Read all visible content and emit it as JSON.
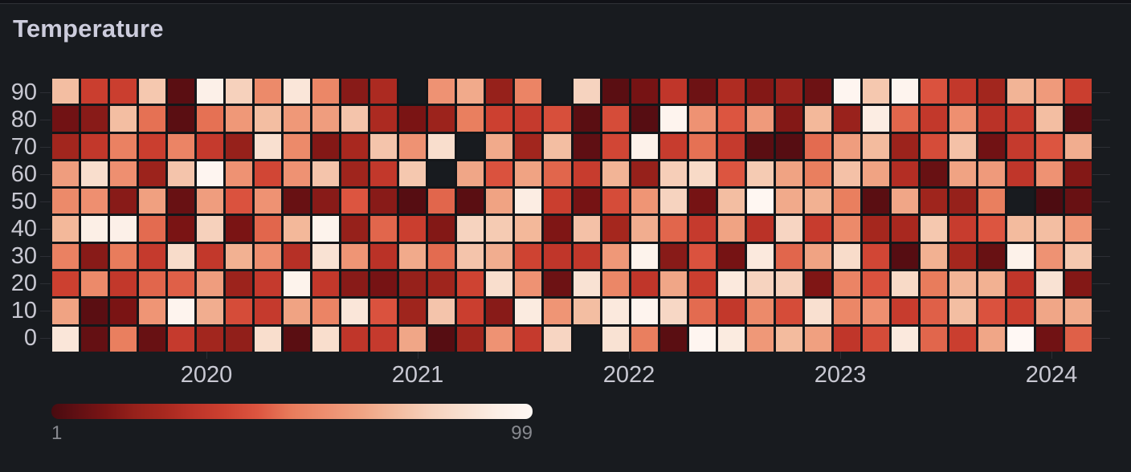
{
  "panel": {
    "title": "Temperature"
  },
  "colors": {
    "panel_bg": "#181b1f",
    "top_border": "#2f3137",
    "title_text": "#ccccdc",
    "axis_text": "#c8c8d2",
    "legend_text": "#87898f",
    "gridline": "#2d2f35",
    "cell_gap": "#141619"
  },
  "chart_data": {
    "type": "heatmap",
    "title": "Temperature",
    "xlabel": "",
    "ylabel": "",
    "x_ticks": [
      "2020",
      "2021",
      "2022",
      "2023",
      "2024"
    ],
    "y_buckets": [
      "90",
      "80",
      "70",
      "60",
      "50",
      "40",
      "30",
      "20",
      "10",
      "0"
    ],
    "value_range": [
      1,
      99
    ],
    "legend": {
      "min_label": "1",
      "max_label": "99"
    },
    "legend_position": "bottom",
    "grid": "faint",
    "color_ramp": [
      {
        "value": 1,
        "color": "#480b10"
      },
      {
        "value": 6,
        "color": "#5f0f13"
      },
      {
        "value": 12,
        "color": "#7a1414"
      },
      {
        "value": 18,
        "color": "#96211b"
      },
      {
        "value": 24,
        "color": "#a8281f"
      },
      {
        "value": 30,
        "color": "#bd3429"
      },
      {
        "value": 36,
        "color": "#cc4030"
      },
      {
        "value": 43,
        "color": "#dc5540"
      },
      {
        "value": 50,
        "color": "#e87c5c"
      },
      {
        "value": 57,
        "color": "#ee8f70"
      },
      {
        "value": 64,
        "color": "#f0a383"
      },
      {
        "value": 71,
        "color": "#f3bb9e"
      },
      {
        "value": 78,
        "color": "#f6d1bc"
      },
      {
        "value": 85,
        "color": "#f9e0d0"
      },
      {
        "value": 92,
        "color": "#fcefe6"
      },
      {
        "value": 99,
        "color": "#fff8f4"
      }
    ],
    "values": [
      [
        72,
        35,
        35,
        75,
        5,
        93,
        78,
        55,
        88,
        54,
        15,
        25,
        null,
        58,
        66,
        18,
        53,
        null,
        79,
        5,
        11,
        31,
        9,
        26,
        14,
        19,
        9,
        97,
        75,
        96,
        42,
        32,
        22,
        69,
        61,
        35
      ],
      [
        10,
        15,
        72,
        48,
        5,
        48,
        60,
        72,
        60,
        62,
        74,
        25,
        12,
        20,
        51,
        36,
        33,
        41,
        5,
        40,
        4,
        96,
        58,
        43,
        61,
        14,
        70,
        19,
        91,
        46,
        32,
        57,
        29,
        33,
        72,
        6
      ],
      [
        22,
        32,
        52,
        35,
        53,
        33,
        18,
        85,
        55,
        14,
        24,
        74,
        58,
        84,
        null,
        66,
        22,
        72,
        6,
        38,
        94,
        34,
        48,
        33,
        5,
        4,
        47,
        62,
        71,
        20,
        40,
        73,
        10,
        33,
        43,
        67
      ],
      [
        62,
        84,
        57,
        20,
        74,
        97,
        58,
        38,
        58,
        74,
        21,
        32,
        75,
        null,
        65,
        42,
        64,
        46,
        34,
        69,
        18,
        77,
        82,
        43,
        76,
        64,
        51,
        73,
        64,
        27,
        8,
        64,
        61,
        31,
        58,
        14
      ],
      [
        55,
        57,
        15,
        63,
        8,
        62,
        42,
        58,
        8,
        15,
        43,
        15,
        4,
        46,
        5,
        64,
        91,
        35,
        11,
        40,
        59,
        79,
        11,
        72,
        98,
        66,
        68,
        51,
        5,
        65,
        21,
        18,
        51,
        null,
        2,
        8
      ],
      [
        70,
        92,
        93,
        47,
        12,
        78,
        12,
        46,
        70,
        95,
        18,
        46,
        35,
        14,
        79,
        76,
        70,
        13,
        73,
        23,
        67,
        46,
        33,
        64,
        29,
        80,
        34,
        55,
        23,
        24,
        75,
        34,
        43,
        71,
        72,
        59
      ],
      [
        52,
        15,
        50,
        33,
        83,
        32,
        68,
        57,
        28,
        86,
        59,
        29,
        66,
        47,
        74,
        67,
        37,
        31,
        32,
        60,
        95,
        15,
        42,
        11,
        89,
        46,
        64,
        83,
        38,
        4,
        68,
        23,
        8,
        94,
        58,
        75
      ],
      [
        36,
        55,
        32,
        46,
        45,
        62,
        20,
        33,
        95,
        32,
        15,
        11,
        18,
        21,
        37,
        84,
        58,
        9,
        86,
        54,
        31,
        65,
        35,
        89,
        79,
        78,
        13,
        53,
        42,
        82,
        50,
        69,
        68,
        31,
        86,
        14
      ],
      [
        64,
        5,
        12,
        59,
        96,
        67,
        40,
        33,
        64,
        53,
        88,
        42,
        21,
        74,
        35,
        15,
        90,
        59,
        72,
        89,
        96,
        81,
        47,
        32,
        55,
        40,
        85,
        54,
        57,
        34,
        45,
        72,
        42,
        35,
        65,
        66
      ],
      [
        88,
        7,
        51,
        8,
        33,
        22,
        17,
        84,
        5,
        84,
        31,
        33,
        65,
        4,
        21,
        58,
        33,
        80,
        null,
        86,
        51,
        5,
        97,
        90,
        60,
        71,
        63,
        31,
        40,
        89,
        46,
        35,
        65,
        99,
        10,
        45
      ]
    ]
  }
}
